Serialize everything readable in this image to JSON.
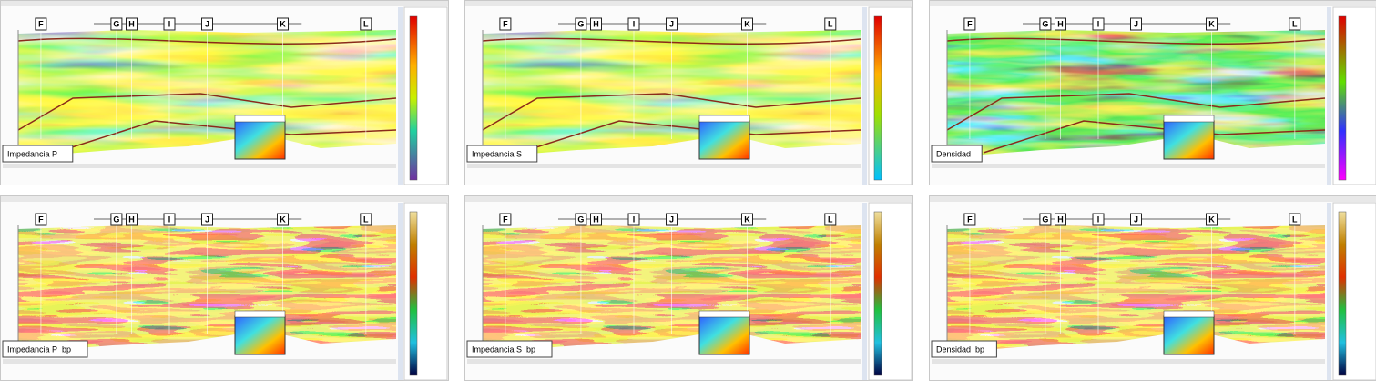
{
  "panels": [
    {
      "label": "Impedancia P",
      "wells": [
        "F",
        "G",
        "H",
        "I",
        "J",
        "K",
        "L"
      ]
    },
    {
      "label": "Impedancia S",
      "wells": [
        "F",
        "G",
        "H",
        "I",
        "J",
        "K",
        "L"
      ]
    },
    {
      "label": "Densidad",
      "wells": [
        "F",
        "G",
        "H",
        "I",
        "J",
        "K",
        "L"
      ]
    },
    {
      "label": "Impedancia P_bp",
      "wells": [
        "F",
        "G",
        "H",
        "I",
        "J",
        "K",
        "L"
      ]
    },
    {
      "label": "Impedancia S_bp",
      "wells": [
        "F",
        "G",
        "H",
        "I",
        "J",
        "K",
        "L"
      ]
    },
    {
      "label": "Densidad_bp",
      "wells": [
        "F",
        "G",
        "H",
        "I",
        "J",
        "K",
        "L"
      ]
    }
  ]
}
